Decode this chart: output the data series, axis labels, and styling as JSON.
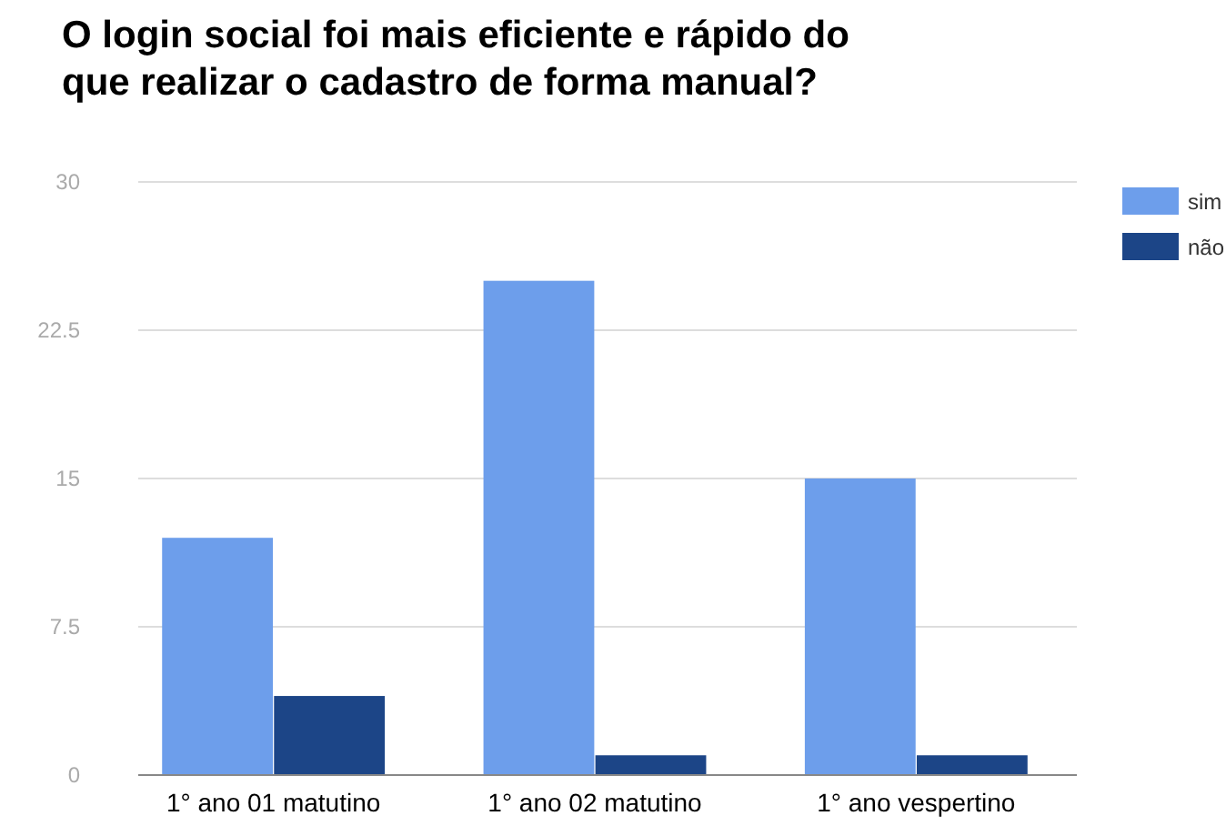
{
  "chart_data": {
    "type": "bar",
    "title": "O login social foi mais eficiente e rápido do que realizar o cadastro de forma manual?",
    "categories": [
      "1° ano 01 matutino",
      "1° ano 02 matutino",
      "1° ano vespertino"
    ],
    "series": [
      {
        "name": "sim",
        "color": "#6d9eeb",
        "values": [
          12,
          25,
          15
        ]
      },
      {
        "name": "não",
        "color": "#1c4587",
        "values": [
          4,
          1,
          1
        ]
      }
    ],
    "ylim": [
      0,
      30
    ],
    "yticks": [
      0,
      7.5,
      15,
      22.5,
      30
    ],
    "grid": "y",
    "legend": "top right"
  }
}
